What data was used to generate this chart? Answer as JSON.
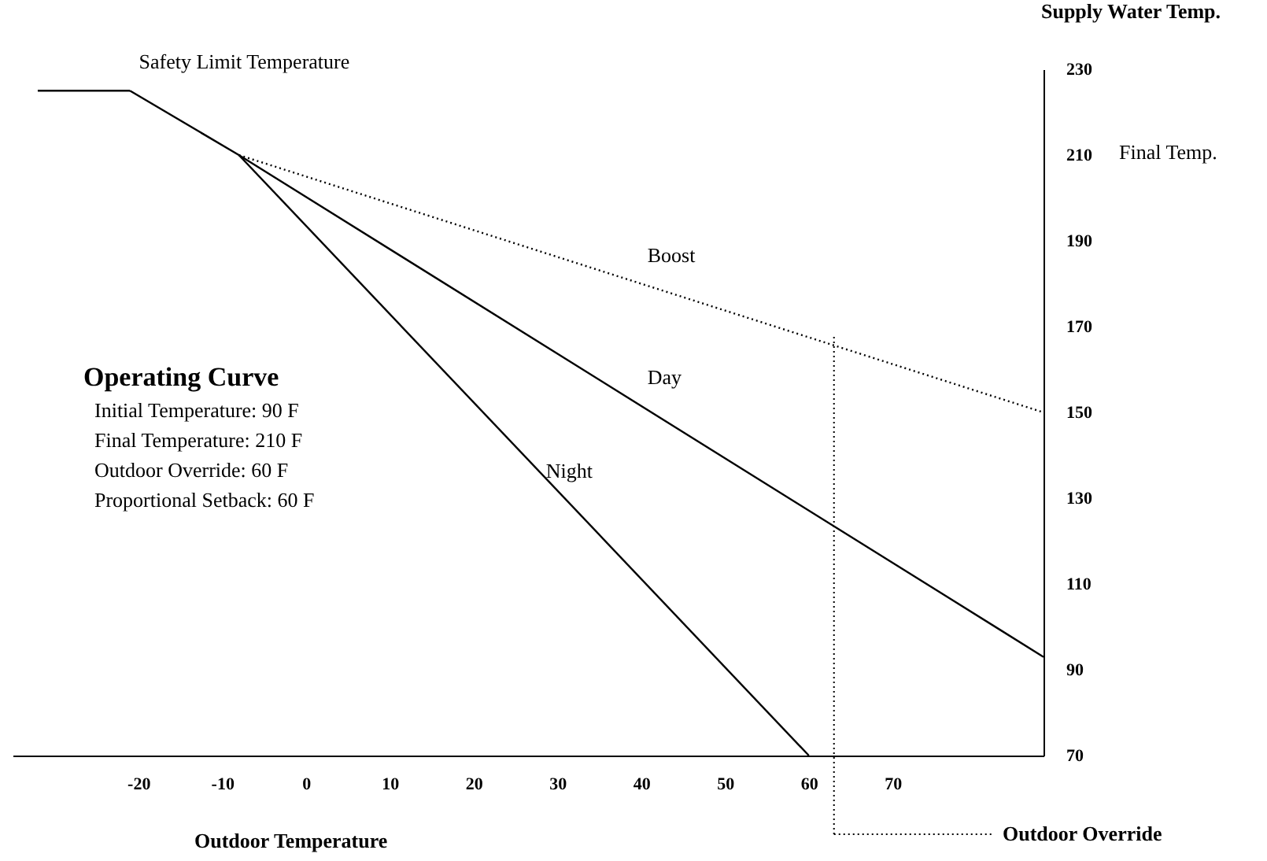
{
  "chart_data": {
    "type": "line",
    "xlabel": "Outdoor Temperature",
    "ylabel": "Supply Water Temp.",
    "xlim": [
      -35,
      88
    ],
    "ylim": [
      70,
      230
    ],
    "xticks": [
      -20,
      -10,
      0,
      10,
      20,
      30,
      40,
      50,
      60,
      70
    ],
    "yticks": [
      70,
      90,
      110,
      130,
      150,
      170,
      190,
      210,
      230
    ],
    "series": [
      {
        "name": "Safety Limit Temperature",
        "color": "#000000",
        "line_style": "solid",
        "x": [
          -32,
          -21
        ],
        "values": [
          225,
          225
        ]
      },
      {
        "name": "Boost",
        "color": "#000000",
        "line_style": "dotted",
        "x": [
          -8,
          88
        ],
        "values": [
          210,
          150
        ]
      },
      {
        "name": "Day",
        "color": "#000000",
        "line_style": "solid",
        "x": [
          -21,
          -8,
          88
        ],
        "values": [
          225,
          210,
          93
        ]
      },
      {
        "name": "Night",
        "color": "#000000",
        "line_style": "solid",
        "x": [
          -8,
          60
        ],
        "values": [
          210,
          70
        ]
      }
    ],
    "ref_lines": [
      {
        "axis": "x",
        "value": 63,
        "label": "Outdoor Override",
        "line_style": "dotted",
        "color": "#000000"
      }
    ],
    "annotations": [
      "Operating Curve",
      "Initial Temperature:   90 F",
      "Final Temperature:   210 F",
      "Outdoor Override:   60 F",
      "Proportional Setback:   60 F",
      "Final Temp."
    ],
    "grid": false,
    "legend": false
  }
}
